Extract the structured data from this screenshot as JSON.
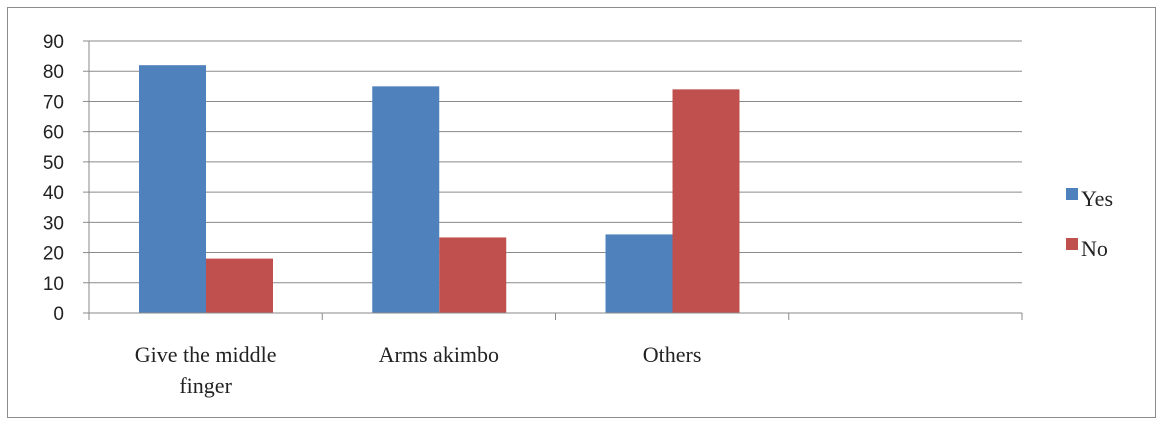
{
  "chart_data": {
    "type": "bar",
    "title": "",
    "xlabel": "",
    "ylabel": "",
    "categories": [
      [
        "Give the middle",
        "finger"
      ],
      [
        "Arms akimbo"
      ],
      [
        "Others"
      ],
      [
        ""
      ]
    ],
    "series": [
      {
        "name": "Yes",
        "color": "#4f81bd",
        "values": [
          82,
          75,
          26,
          null
        ]
      },
      {
        "name": "No",
        "color": "#c0504d",
        "values": [
          18,
          25,
          74,
          null
        ]
      }
    ],
    "ylim": [
      0,
      90
    ],
    "yticks": [
      0,
      10,
      20,
      30,
      40,
      50,
      60,
      70,
      80,
      90
    ],
    "grid": true,
    "legend_position": "right"
  }
}
